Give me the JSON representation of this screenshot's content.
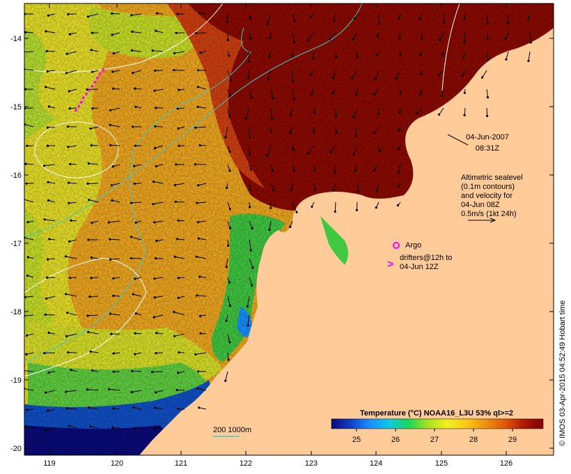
{
  "timestamp": {
    "date": "04-Jun-2007",
    "time": "08:31Z"
  },
  "altimetry_note": [
    "Altimetric sealevel",
    "(0.1m contours)",
    "and velocity for",
    "04-Jun 08Z",
    "0.5m/s (1kt 24h)"
  ],
  "legend": {
    "argo": "Argo",
    "drifters_line1": "drifters@12h to",
    "drifters_line2": "04-Jun 12Z",
    "drifter_symbol": ">",
    "isobath": "200  1000m"
  },
  "colorbar": {
    "title": "Temperature (°C) NOAA16_L3U 53% ql>=2",
    "ticks": [
      "25",
      "26",
      "27",
      "28",
      "29"
    ],
    "stops": [
      "#0a0a7a",
      "#1040c8",
      "#1890ff",
      "#10c8e8",
      "#18d858",
      "#a8e020",
      "#f0f020",
      "#f8c818",
      "#f09010",
      "#e05808",
      "#b01800",
      "#800000"
    ]
  },
  "axes": {
    "lat_labels": [
      "-14",
      "-15",
      "-16",
      "-17",
      "-18",
      "-19",
      "-20"
    ],
    "lon_labels": [
      "119",
      "120",
      "121",
      "122",
      "123",
      "124",
      "125",
      "126"
    ]
  },
  "credit": "© IMOS 03-Apr-2015 04:52:49 Hobart time",
  "colors": {
    "land": "#ffcc99",
    "hot": "#8c0a00",
    "warm": "#f0a020",
    "mid": "#f0e020",
    "cool": "#40c840",
    "cold": "#1040c0",
    "isobath": "#40c8c8",
    "drifter": "#ff00ff"
  }
}
